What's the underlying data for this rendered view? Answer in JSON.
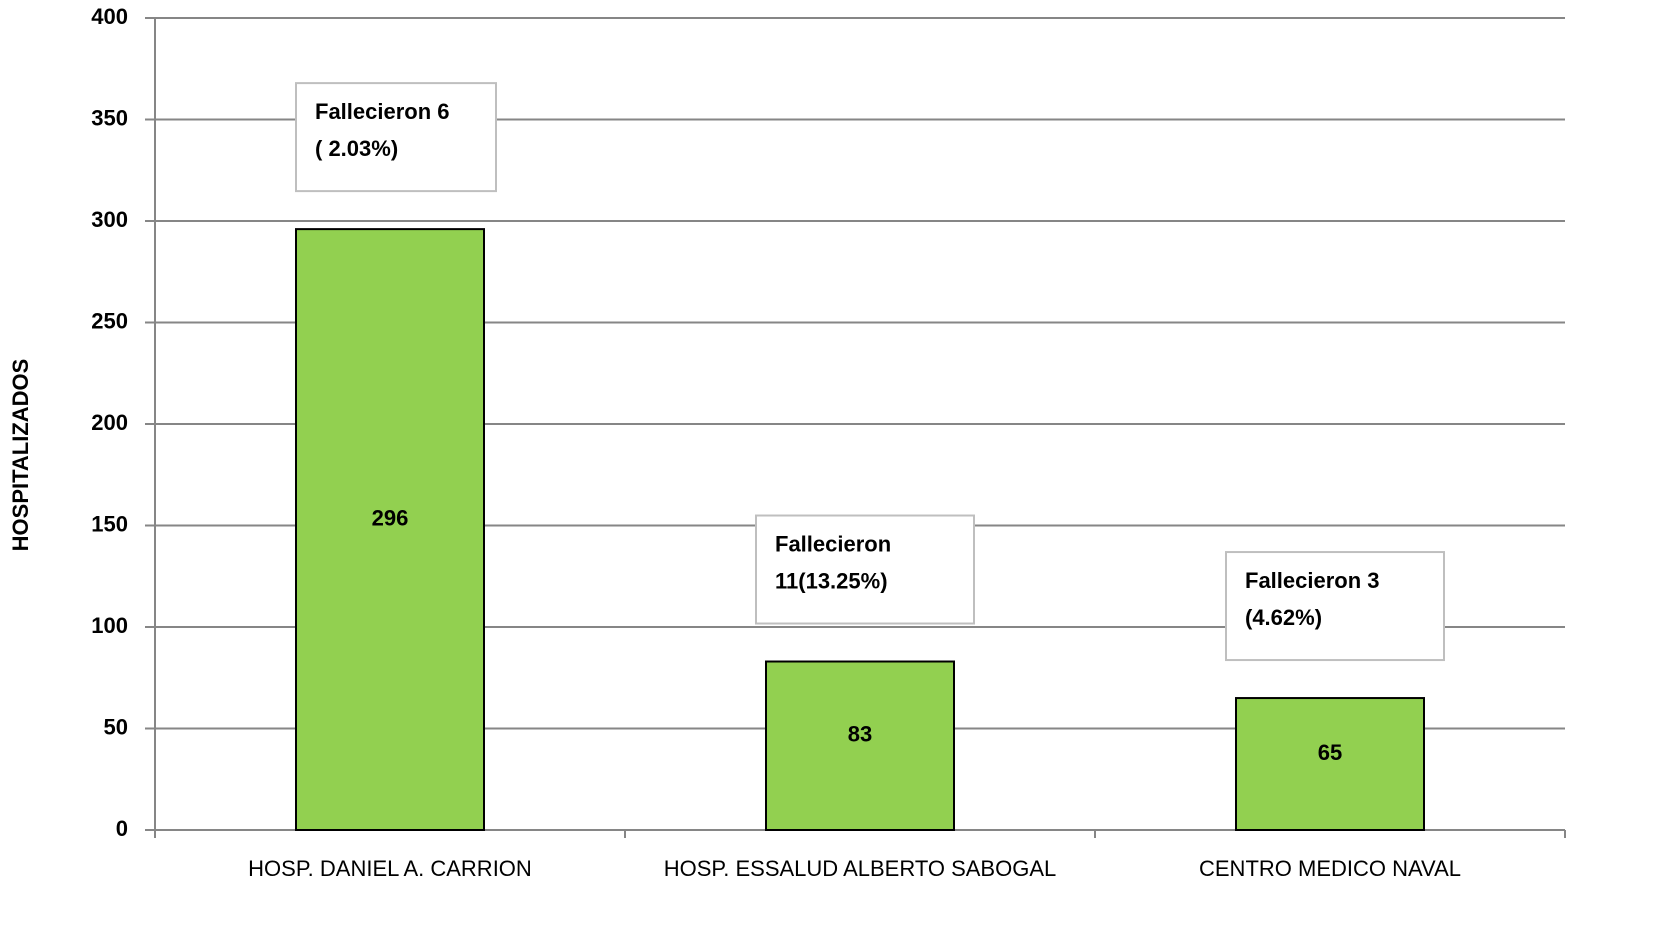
{
  "chart_data": {
    "type": "bar",
    "y_axis_label": "HOSPITALIZADOS",
    "categories": [
      "HOSP. DANIEL A. CARRION",
      "HOSP. ESSALUD ALBERTO SABOGAL",
      "CENTRO MEDICO NAVAL"
    ],
    "values": [
      296,
      83,
      65
    ],
    "color": "#92d050",
    "ylim": [
      0,
      400
    ],
    "yticks": [
      0,
      50,
      100,
      150,
      200,
      250,
      300,
      350,
      400
    ],
    "grid": true,
    "annotations": [
      {
        "lines": [
          "Fallecieron 6",
          "( 2.03%)"
        ]
      },
      {
        "lines": [
          "Fallecieron",
          "11(13.25%)"
        ]
      },
      {
        "lines": [
          "Fallecieron 3",
          "(4.62%)"
        ]
      }
    ]
  }
}
